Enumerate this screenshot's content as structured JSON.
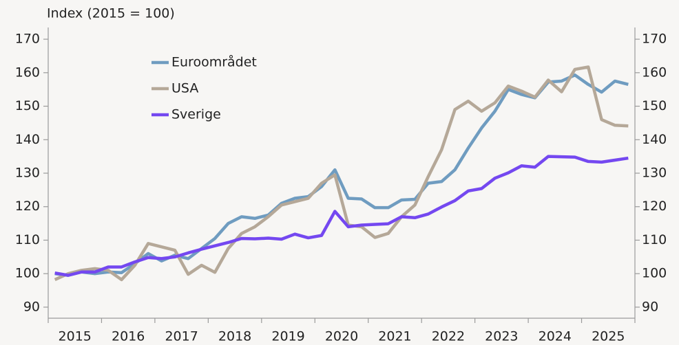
{
  "chart_data": {
    "type": "line",
    "axis_title": "Index (2015 = 100)",
    "categories": [
      "2015",
      null,
      null,
      null,
      "2016",
      null,
      null,
      null,
      "2017",
      null,
      null,
      null,
      "2018",
      null,
      null,
      null,
      "2019",
      null,
      null,
      null,
      "2020",
      null,
      null,
      null,
      "2021",
      null,
      null,
      null,
      "2022",
      null,
      null,
      null,
      "2023",
      null,
      null,
      null,
      "2024",
      null,
      null,
      null,
      "2025",
      null,
      null,
      null
    ],
    "series": [
      {
        "name": "Euroområdet",
        "color": "#6f9cc0",
        "values": [
          100,
          99.5,
          100.5,
          100,
          100.5,
          100.3,
          103,
          106,
          103.8,
          105.5,
          104.5,
          107.5,
          110.5,
          115,
          117,
          116.5,
          117.5,
          121,
          122.5,
          123,
          126,
          131,
          122.5,
          122.3,
          119.7,
          119.7,
          122,
          122.2,
          127,
          127.5,
          131,
          137.5,
          143.5,
          148.5,
          155,
          153.5,
          152.5,
          157.2,
          157.5,
          159.3,
          156.5,
          154.2,
          157.5,
          156.5
        ]
      },
      {
        "name": "USA",
        "color": "#b5a898",
        "values": [
          98.2,
          100,
          101,
          101.5,
          101,
          98.2,
          102.5,
          109,
          108,
          107,
          99.8,
          102.5,
          100.4,
          107.5,
          112,
          114,
          117,
          120.5,
          121.5,
          122.5,
          127,
          129.5,
          114.5,
          114,
          110.8,
          112,
          117,
          120.5,
          129,
          137,
          149,
          151.5,
          148.5,
          151,
          156,
          154.5,
          152.7,
          157.8,
          154.3,
          161,
          161.7,
          146,
          144.3,
          144.1
        ]
      },
      {
        "name": "Sverige",
        "color": "#7448f0",
        "values": [
          100.2,
          99.5,
          100.5,
          100.5,
          102,
          102,
          103.5,
          104.8,
          104.5,
          105,
          106.2,
          107.3,
          108.3,
          109.3,
          110.5,
          110.4,
          110.6,
          110.3,
          111.8,
          110.7,
          111.4,
          118.6,
          114,
          114.5,
          114.7,
          114.9,
          117,
          116.7,
          117.8,
          119.9,
          121.8,
          124.7,
          125.4,
          128.5,
          130.1,
          132.2,
          131.8,
          135,
          134.9,
          134.8,
          133.5,
          133.3,
          133.9,
          134.5
        ]
      }
    ],
    "ylim": [
      86.7,
      173.5
    ],
    "yticks": [
      90,
      100,
      110,
      120,
      130,
      140,
      150,
      160,
      170
    ],
    "y2lim": [
      86.7,
      173.5
    ],
    "y2ticks": [
      90,
      100,
      110,
      120,
      130,
      140,
      150,
      160,
      170
    ],
    "grid": false
  }
}
